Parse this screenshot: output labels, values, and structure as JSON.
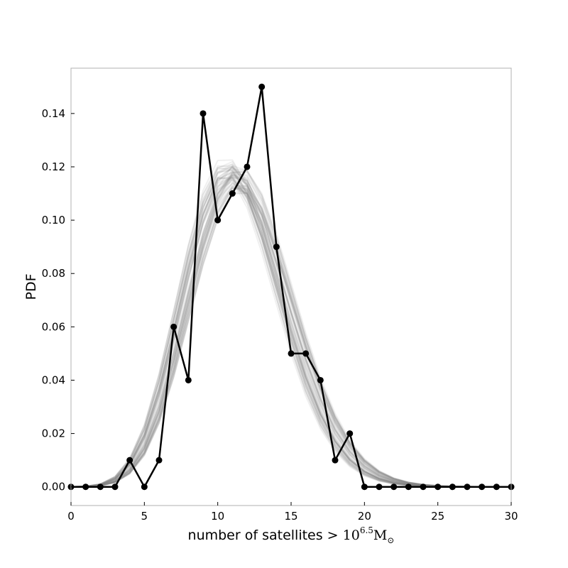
{
  "chart_data": {
    "type": "line",
    "xlabel": "number of satellites > ",
    "xlabel_math": {
      "base": "10",
      "exponent": "6.5",
      "unit": "M",
      "subscript": "⊙"
    },
    "ylabel": "PDF",
    "xlim": [
      0,
      30
    ],
    "ylim": [
      -0.007,
      0.157
    ],
    "xticks": [
      0,
      5,
      10,
      15,
      20,
      25,
      30
    ],
    "yticks": [
      0.0,
      0.02,
      0.04,
      0.06,
      0.08,
      0.1,
      0.12,
      0.14
    ],
    "ytick_labels": [
      "0.00",
      "0.02",
      "0.04",
      "0.06",
      "0.08",
      "0.10",
      "0.12",
      "0.14"
    ],
    "grid": false,
    "legend": null,
    "series": [
      {
        "style": "black line with circle markers",
        "color": "#000000",
        "x": [
          0,
          1,
          2,
          3,
          4,
          5,
          6,
          7,
          8,
          9,
          10,
          11,
          12,
          13,
          14,
          15,
          16,
          17,
          18,
          19,
          20,
          21,
          22,
          23,
          24,
          25,
          26,
          27,
          28,
          29,
          30
        ],
        "values": [
          0,
          0,
          0,
          0,
          0.01,
          0,
          0.01,
          0.06,
          0.04,
          0.14,
          0.1,
          0.11,
          0.12,
          0.15,
          0.09,
          0.05,
          0.05,
          0.04,
          0.01,
          0.02,
          0,
          0,
          0,
          0,
          0,
          0,
          0,
          0,
          0,
          0,
          0
        ]
      }
    ],
    "background_curves": {
      "style": "many faint gray translucent curves",
      "color": "#808080",
      "count": 60,
      "shape": "approximately Poisson-like distribution with mean near 11.5",
      "mean_range": [
        10.9,
        12.1
      ]
    }
  }
}
